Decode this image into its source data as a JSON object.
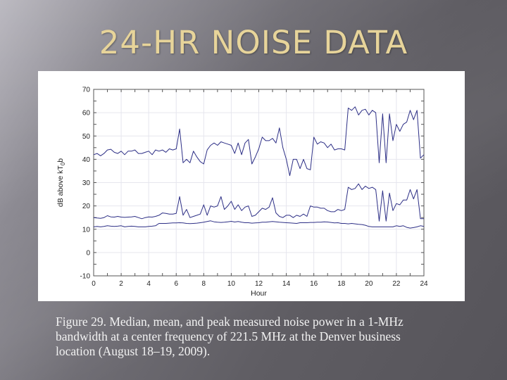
{
  "slide": {
    "title": "24-HR NOISE DATA",
    "caption_lines": [
      "Figure 29. Median, mean, and peak measured noise power in a 1-MHz",
      "bandwidth at a center frequency of 221.5 MHz at the Denver business",
      "location (August 18–19, 2009)."
    ]
  },
  "colors": {
    "title": "#e7d49a",
    "line": "#2d2f86",
    "grid": "#e6e6ee",
    "axis": "#555555"
  },
  "chart_data": {
    "type": "line",
    "title": "",
    "xlabel": "Hour",
    "ylabel": "dB above kT0b",
    "xlim": [
      0,
      24
    ],
    "ylim": [
      -10,
      70
    ],
    "xticks": [
      0,
      2,
      4,
      6,
      8,
      10,
      12,
      14,
      16,
      18,
      20,
      22,
      24
    ],
    "yticks": [
      -10,
      0,
      10,
      20,
      30,
      40,
      50,
      60,
      70
    ],
    "grid": true,
    "legend": null,
    "x": [
      0,
      0.25,
      0.5,
      0.75,
      1,
      1.25,
      1.5,
      1.75,
      2,
      2.25,
      2.5,
      2.75,
      3,
      3.25,
      3.5,
      3.75,
      4,
      4.25,
      4.5,
      4.75,
      5,
      5.25,
      5.5,
      5.75,
      6,
      6.25,
      6.5,
      6.75,
      7,
      7.25,
      7.5,
      7.75,
      8,
      8.25,
      8.5,
      8.75,
      9,
      9.25,
      9.5,
      9.75,
      10,
      10.25,
      10.5,
      10.75,
      11,
      11.25,
      11.5,
      11.75,
      12,
      12.25,
      12.5,
      12.75,
      13,
      13.25,
      13.5,
      13.75,
      14,
      14.25,
      14.5,
      14.75,
      15,
      15.25,
      15.5,
      15.75,
      16,
      16.25,
      16.5,
      16.75,
      17,
      17.25,
      17.5,
      17.75,
      18,
      18.25,
      18.5,
      18.75,
      19,
      19.25,
      19.5,
      19.75,
      20,
      20.25,
      20.5,
      20.75,
      21,
      21.25,
      21.5,
      21.75,
      22,
      22.25,
      22.5,
      22.75,
      23,
      23.25,
      23.5,
      23.75,
      24
    ],
    "series": [
      {
        "name": "Peak",
        "values": [
          42,
          42.5,
          41.5,
          42.5,
          44,
          44.3,
          43,
          42.5,
          43.5,
          42,
          43.5,
          43.5,
          44,
          42.5,
          42.5,
          43,
          43.5,
          42,
          44,
          43.5,
          44,
          43,
          44.5,
          44,
          44.5,
          53,
          38.5,
          40,
          38.5,
          43.5,
          41,
          39,
          38,
          44,
          46,
          47,
          46,
          47.5,
          47,
          46.5,
          46,
          42.5,
          47,
          42,
          47,
          48.5,
          38,
          41,
          44.5,
          49.5,
          48,
          48,
          49,
          47,
          53.5,
          45,
          40,
          33,
          40,
          40,
          36,
          40,
          36,
          35.5,
          49.5,
          46.5,
          47.5,
          47,
          45,
          46.5,
          44,
          44.5,
          44.5,
          44,
          62,
          61,
          62.5,
          59,
          61,
          61.5,
          59,
          61,
          60,
          38.5,
          59.5,
          38.5,
          59.5,
          48,
          55,
          52,
          55,
          56,
          61,
          57,
          61,
          40.5,
          42,
          40,
          40
        ]
      },
      {
        "name": "Mean",
        "values": [
          15,
          14.8,
          14.7,
          15,
          15.8,
          15.3,
          15.2,
          15.5,
          15.2,
          15.1,
          15.2,
          15.3,
          15.5,
          15,
          14.5,
          15,
          15.3,
          15.2,
          15.5,
          16,
          17,
          16.8,
          16.5,
          16.5,
          16.8,
          24,
          16,
          18.5,
          15,
          15.5,
          16,
          16.5,
          20.5,
          16,
          20,
          19.5,
          20,
          24,
          18.5,
          20,
          22,
          18.5,
          20.5,
          18,
          19.5,
          20,
          15.5,
          16,
          17.5,
          19,
          18.5,
          19.5,
          23.5,
          17,
          15.5,
          15,
          16,
          16,
          15,
          16,
          15.5,
          16.5,
          15.5,
          20,
          19.5,
          19.5,
          19,
          19,
          18,
          17.5,
          17.5,
          18.5,
          18,
          18.5,
          28,
          27,
          27.5,
          29.5,
          27,
          28.5,
          27.5,
          28,
          27,
          13.5,
          26.5,
          13.5,
          25.5,
          18,
          21,
          20.5,
          22.5,
          22.5,
          27,
          23,
          27,
          14.5,
          14.5,
          14.5,
          14.5
        ]
      },
      {
        "name": "Median",
        "values": [
          11,
          11.2,
          11,
          11.2,
          11.5,
          11.3,
          11.2,
          11.3,
          11.5,
          11,
          11.2,
          11.3,
          11.2,
          11,
          11,
          11,
          11.2,
          11.3,
          11.5,
          12.5,
          12.5,
          12.5,
          12.6,
          12.7,
          12.7,
          12.8,
          12.7,
          12.5,
          12.4,
          12.5,
          12.6,
          12.8,
          13,
          13.3,
          13.6,
          13.2,
          13,
          12.9,
          13,
          13.2,
          13.4,
          13.1,
          13.3,
          13,
          12.8,
          12.8,
          12.6,
          12.7,
          12.8,
          13,
          13,
          13.2,
          13.3,
          13.2,
          13,
          12.9,
          12.8,
          12.7,
          12.6,
          12.5,
          12.8,
          12.8,
          12.8,
          12.9,
          12.9,
          13,
          13,
          13.2,
          13.1,
          12.9,
          12.7,
          12.8,
          12.5,
          12.5,
          12.3,
          12.5,
          12.3,
          12.1,
          12,
          11.7,
          11.2,
          11,
          11,
          11,
          11,
          11,
          11,
          11,
          11.5,
          11.2,
          11.5,
          10.8,
          10.5,
          10.7,
          11,
          11.5,
          11.2,
          11,
          11
        ]
      }
    ]
  }
}
